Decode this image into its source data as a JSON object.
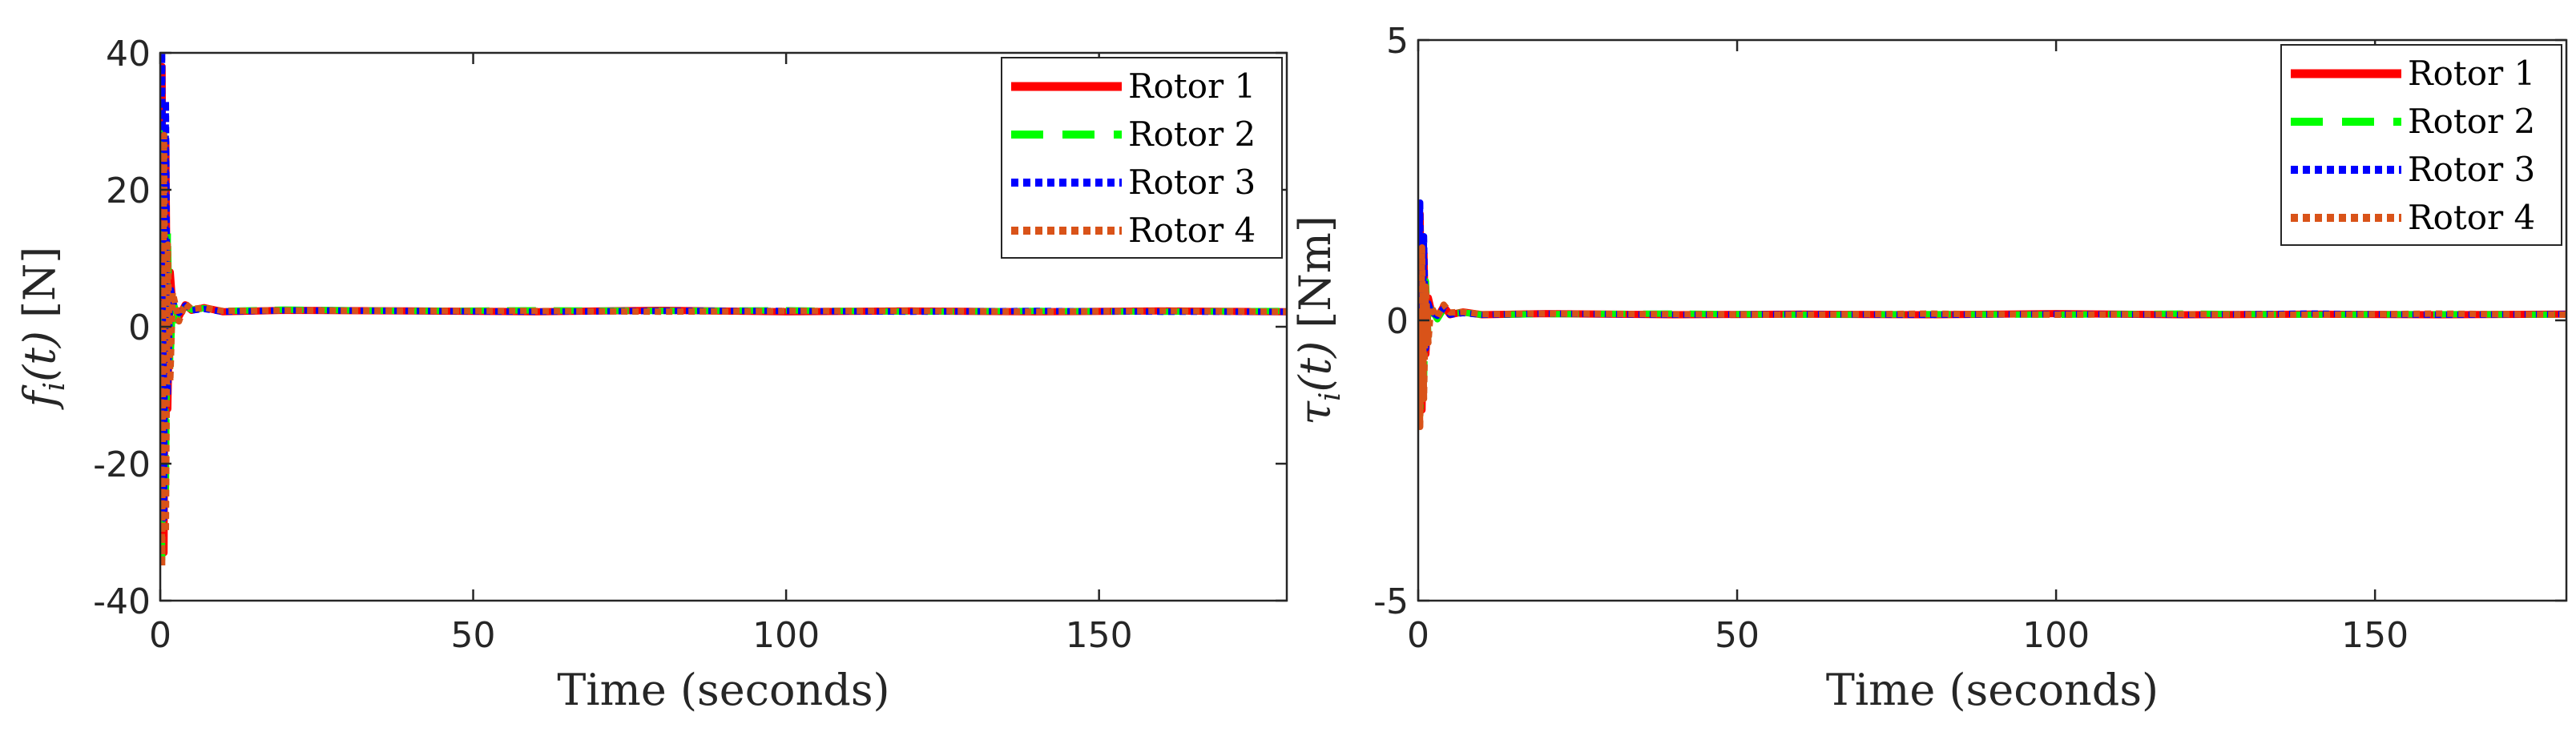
{
  "chart_data": [
    {
      "type": "line",
      "xlabel": "Time (seconds)",
      "ylabel": {
        "symbol": "f",
        "sub": "i",
        "arg": "(t)",
        "unit": "[N]"
      },
      "xlim": [
        0,
        180
      ],
      "ylim": [
        -40,
        40
      ],
      "xticks": [
        0,
        50,
        100,
        150
      ],
      "yticks": [
        40,
        20,
        0,
        -20,
        -40
      ],
      "grid": false,
      "legend_position": "top-right",
      "series": [
        {
          "name": "Rotor 1",
          "color": "#ff0000",
          "style": "solid",
          "x": [
            0,
            0.3,
            0.6,
            0.9,
            1.2,
            1.6,
            2,
            3,
            4,
            5,
            7,
            10,
            20,
            40,
            60,
            80,
            100,
            120,
            140,
            160,
            180
          ],
          "y": [
            2.5,
            38,
            -33,
            27,
            -12,
            8,
            3,
            1.5,
            3.2,
            2.4,
            2.8,
            2.2,
            2.4,
            2.3,
            2.2,
            2.4,
            2.2,
            2.3,
            2.2,
            2.3,
            2.2
          ]
        },
        {
          "name": "Rotor 2",
          "color": "#00ff00",
          "style": "dashed",
          "x": [
            0,
            0.3,
            0.6,
            0.9,
            1.2,
            1.6,
            2,
            3,
            4,
            5,
            7,
            10,
            20,
            40,
            60,
            80,
            100,
            120,
            140,
            160,
            180
          ],
          "y": [
            2.5,
            -34,
            30,
            -25,
            14,
            -6,
            4,
            0.4,
            3,
            2.5,
            2.7,
            2.3,
            2.5,
            2.3,
            2.4,
            2.3,
            2.4,
            2.2,
            2.3,
            2.2,
            2.3
          ]
        },
        {
          "name": "Rotor 3",
          "color": "#0000ff",
          "style": "dotted",
          "x": [
            0,
            0.3,
            0.6,
            0.9,
            1.2,
            1.6,
            2,
            3,
            4,
            5,
            7,
            10,
            20,
            40,
            60,
            80,
            100,
            120,
            140,
            160,
            180
          ],
          "y": [
            2.5,
            40,
            -28,
            33,
            -10,
            6,
            3.5,
            2,
            3.1,
            2.4,
            2.6,
            2.2,
            2.4,
            2.3,
            2.2,
            2.3,
            2.3,
            2.2,
            2.3,
            2.2,
            2.2
          ]
        },
        {
          "name": "Rotor 4",
          "color": "#d95319",
          "style": "dotted",
          "x": [
            0,
            0.3,
            0.6,
            0.9,
            1.2,
            1.6,
            2,
            3,
            4,
            5,
            7,
            10,
            20,
            40,
            60,
            80,
            100,
            120,
            140,
            160,
            180
          ],
          "y": [
            2.5,
            -35,
            28,
            -30,
            12,
            -8,
            5,
            0.8,
            3.4,
            2.6,
            2.8,
            2.3,
            2.4,
            2.3,
            2.3,
            2.2,
            2.3,
            2.3,
            2.2,
            2.3,
            2.2
          ]
        }
      ]
    },
    {
      "type": "line",
      "xlabel": "Time (seconds)",
      "ylabel": {
        "symbol": "τ",
        "sub": "i",
        "arg": "(t)",
        "unit": "[Nm]"
      },
      "xlim": [
        0,
        180
      ],
      "ylim": [
        -5,
        5
      ],
      "xticks": [
        0,
        50,
        100,
        150
      ],
      "yticks": [
        5,
        0,
        -5
      ],
      "grid": false,
      "legend_position": "top-right",
      "series": [
        {
          "name": "Rotor 1",
          "color": "#ff0000",
          "style": "solid",
          "x": [
            0,
            0.3,
            0.6,
            0.9,
            1.2,
            1.6,
            2,
            3,
            4,
            5,
            7,
            10,
            20,
            40,
            60,
            80,
            100,
            120,
            140,
            160,
            180
          ],
          "y": [
            0.1,
            1.9,
            -1.6,
            1.2,
            -0.6,
            0.4,
            0.2,
            0.05,
            0.25,
            0.1,
            0.15,
            0.1,
            0.12,
            0.1,
            0.11,
            0.1,
            0.12,
            0.1,
            0.11,
            0.1,
            0.11
          ]
        },
        {
          "name": "Rotor 2",
          "color": "#00ff00",
          "style": "dashed",
          "x": [
            0,
            0.3,
            0.6,
            0.9,
            1.2,
            1.6,
            2,
            3,
            4,
            5,
            7,
            10,
            20,
            40,
            60,
            80,
            100,
            120,
            140,
            160,
            180
          ],
          "y": [
            0.1,
            -1.7,
            1.5,
            -1.1,
            0.7,
            -0.3,
            0.2,
            0.02,
            0.2,
            0.12,
            0.14,
            0.1,
            0.11,
            0.12,
            0.1,
            0.11,
            0.1,
            0.12,
            0.1,
            0.11,
            0.1
          ]
        },
        {
          "name": "Rotor 3",
          "color": "#0000ff",
          "style": "dotted",
          "x": [
            0,
            0.3,
            0.6,
            0.9,
            1.2,
            1.6,
            2,
            3,
            4,
            5,
            7,
            10,
            20,
            40,
            60,
            80,
            100,
            120,
            140,
            160,
            180
          ],
          "y": [
            0.1,
            2.1,
            -1.3,
            1.5,
            -0.5,
            0.3,
            0.15,
            0.08,
            0.22,
            0.1,
            0.13,
            0.1,
            0.12,
            0.1,
            0.11,
            0.1,
            0.11,
            0.1,
            0.12,
            0.1,
            0.11
          ]
        },
        {
          "name": "Rotor 4",
          "color": "#d95319",
          "style": "dotted",
          "x": [
            0,
            0.3,
            0.6,
            0.9,
            1.2,
            1.6,
            2,
            3,
            4,
            5,
            7,
            10,
            20,
            40,
            60,
            80,
            100,
            120,
            140,
            160,
            180
          ],
          "y": [
            0.1,
            -1.9,
            1.3,
            -1.4,
            0.6,
            -0.4,
            0.25,
            0.05,
            0.28,
            0.14,
            0.15,
            0.11,
            0.12,
            0.11,
            0.1,
            0.12,
            0.1,
            0.11,
            0.1,
            0.12,
            0.1
          ]
        }
      ]
    }
  ]
}
